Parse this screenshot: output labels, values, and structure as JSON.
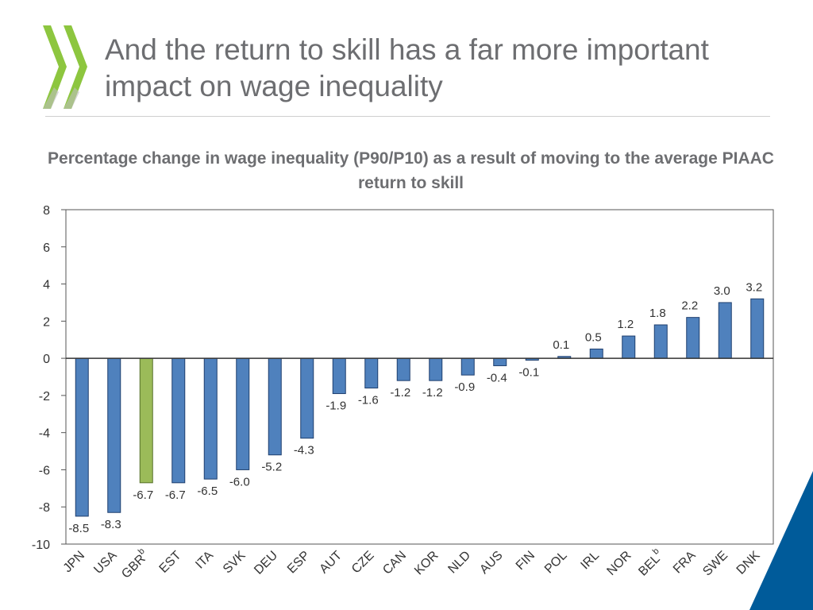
{
  "slide": {
    "title": "And the return to skill has a far more important impact on wage inequality"
  },
  "colors": {
    "bar": "#4f81bd",
    "bar_border": "#1f3f6e",
    "highlight_bar": "#9bbb59",
    "highlight_border": "#55702a",
    "logo": "#8dc63f",
    "corner": "#005b9a"
  },
  "chart_data": {
    "type": "bar",
    "title": "Percentage change in wage inequality (P90/P10) as a result of moving to the average PIAAC return to skill",
    "xlabel": "",
    "ylabel": "",
    "ylim": [
      -10,
      8
    ],
    "yticks": [
      -10,
      -8,
      -6,
      -4,
      -2,
      0,
      2,
      4,
      6,
      8
    ],
    "grid": false,
    "categories": [
      "JPN",
      "USA",
      "GBR",
      "EST",
      "ITA",
      "SVK",
      "DEU",
      "ESP",
      "AUT",
      "CZE",
      "CAN",
      "KOR",
      "NLD",
      "AUS",
      "FIN",
      "POL",
      "IRL",
      "NOR",
      "BEL",
      "FRA",
      "SWE",
      "DNK"
    ],
    "category_superscripts": [
      "",
      "",
      "b",
      "",
      "",
      "",
      "",
      "",
      "",
      "",
      "",
      "",
      "",
      "",
      "",
      "",
      "",
      "",
      "b",
      "",
      "",
      ""
    ],
    "values": [
      -8.5,
      -8.3,
      -6.7,
      -6.7,
      -6.5,
      -6.0,
      -5.2,
      -4.3,
      -1.9,
      -1.6,
      -1.2,
      -1.2,
      -0.9,
      -0.4,
      -0.1,
      0.1,
      0.5,
      1.2,
      1.8,
      2.2,
      3.0,
      3.2
    ],
    "value_labels": [
      "-8.5",
      "-8.3",
      "-6.7",
      "-6.7",
      "-6.5",
      "-6.0",
      "-5.2",
      "-4.3",
      "-1.9",
      "-1.6",
      "-1.2",
      "-1.2",
      "-0.9",
      "-0.4",
      "-0.1",
      "0.1",
      "0.5",
      "1.2",
      "1.8",
      "2.2",
      "3.0",
      "3.2"
    ],
    "highlight": [
      "GBR"
    ]
  }
}
